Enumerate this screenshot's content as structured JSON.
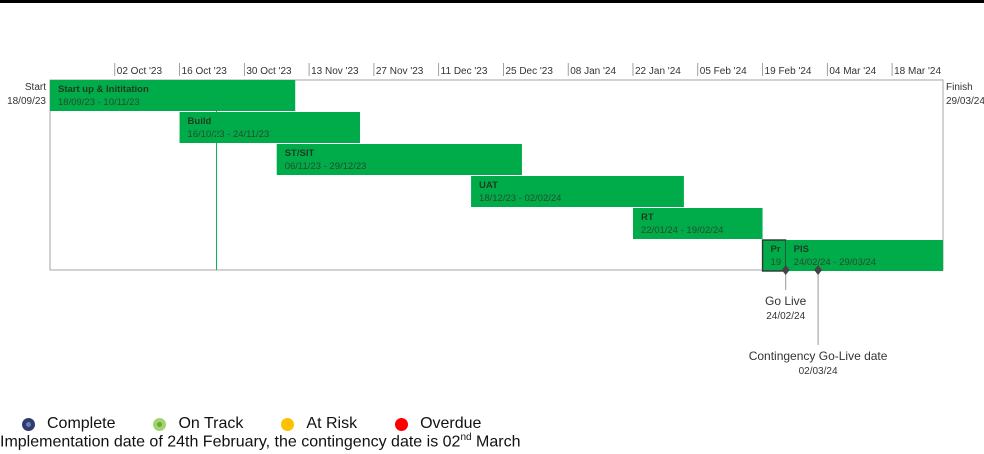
{
  "chart_data": {
    "type": "gantt",
    "start_label": "Start",
    "start_date": "18/09/23",
    "finish_label": "Finish",
    "finish_date": "29/03/24",
    "ticks": [
      "02 Oct '23",
      "16 Oct '23",
      "30 Oct '23",
      "13 Nov '23",
      "27 Nov '23",
      "11 Dec '23",
      "25 Dec '23",
      "08 Jan '24",
      "22 Jan '24",
      "05 Feb '24",
      "19 Feb '24",
      "04 Mar '24",
      "18 Mar '24"
    ],
    "tasks": [
      {
        "name": "Start up & Inititation",
        "start": "2023-09-18",
        "end": "2023-11-10",
        "dates": "18/09/23 - 10/11/23",
        "row": 0
      },
      {
        "name": "Build",
        "start": "2023-10-16",
        "end": "2023-11-24",
        "dates": "16/10/23 - 24/11/23",
        "row": 1
      },
      {
        "name": "ST/SIT",
        "start": "2023-11-06",
        "end": "2023-12-29",
        "dates": "06/11/23 - 29/12/23",
        "row": 2
      },
      {
        "name": "UAT",
        "start": "2023-12-18",
        "end": "2024-02-02",
        "dates": "18/12/23 - 02/02/24",
        "row": 3
      },
      {
        "name": "RT",
        "start": "2024-01-22",
        "end": "2024-02-19",
        "dates": "22/01/24 - 19/02/24",
        "row": 4
      },
      {
        "name": "Pr",
        "start": "2024-02-19",
        "end": "2024-02-24",
        "dates": "19",
        "row": 5,
        "outlined": true
      },
      {
        "name": "PIS",
        "start": "2024-02-24",
        "end": "2024-03-29",
        "dates": "24/02/24 - 29/03/24",
        "row": 5
      }
    ],
    "today": "2023-10-24",
    "milestones": [
      {
        "label": "Go Live",
        "date": "2024-02-24",
        "date_label": "24/02/24",
        "level": 0
      },
      {
        "label": "Contingency Go-Live date",
        "date": "2024-03-02",
        "date_label": "02/03/24",
        "level": 1
      }
    ],
    "colors": {
      "bar": "#00ac4a",
      "outline": "#333333",
      "today_line": "#00ac4a",
      "frame": "#a6a6a6"
    }
  },
  "legend": [
    {
      "label": "Complete",
      "color": "#2e3c6e",
      "style": "complete"
    },
    {
      "label": "On Track",
      "color": "#a3d36e",
      "style": "ontrack"
    },
    {
      "label": "At Risk",
      "color": "#ffc000",
      "style": "atrisk"
    },
    {
      "label": "Overdue",
      "color": "#ff0000",
      "style": "overdue"
    }
  ],
  "note": {
    "text_before": "Implementation date of 24th February, the contingency date is 02",
    "sup": "nd",
    "text_after": " March"
  }
}
